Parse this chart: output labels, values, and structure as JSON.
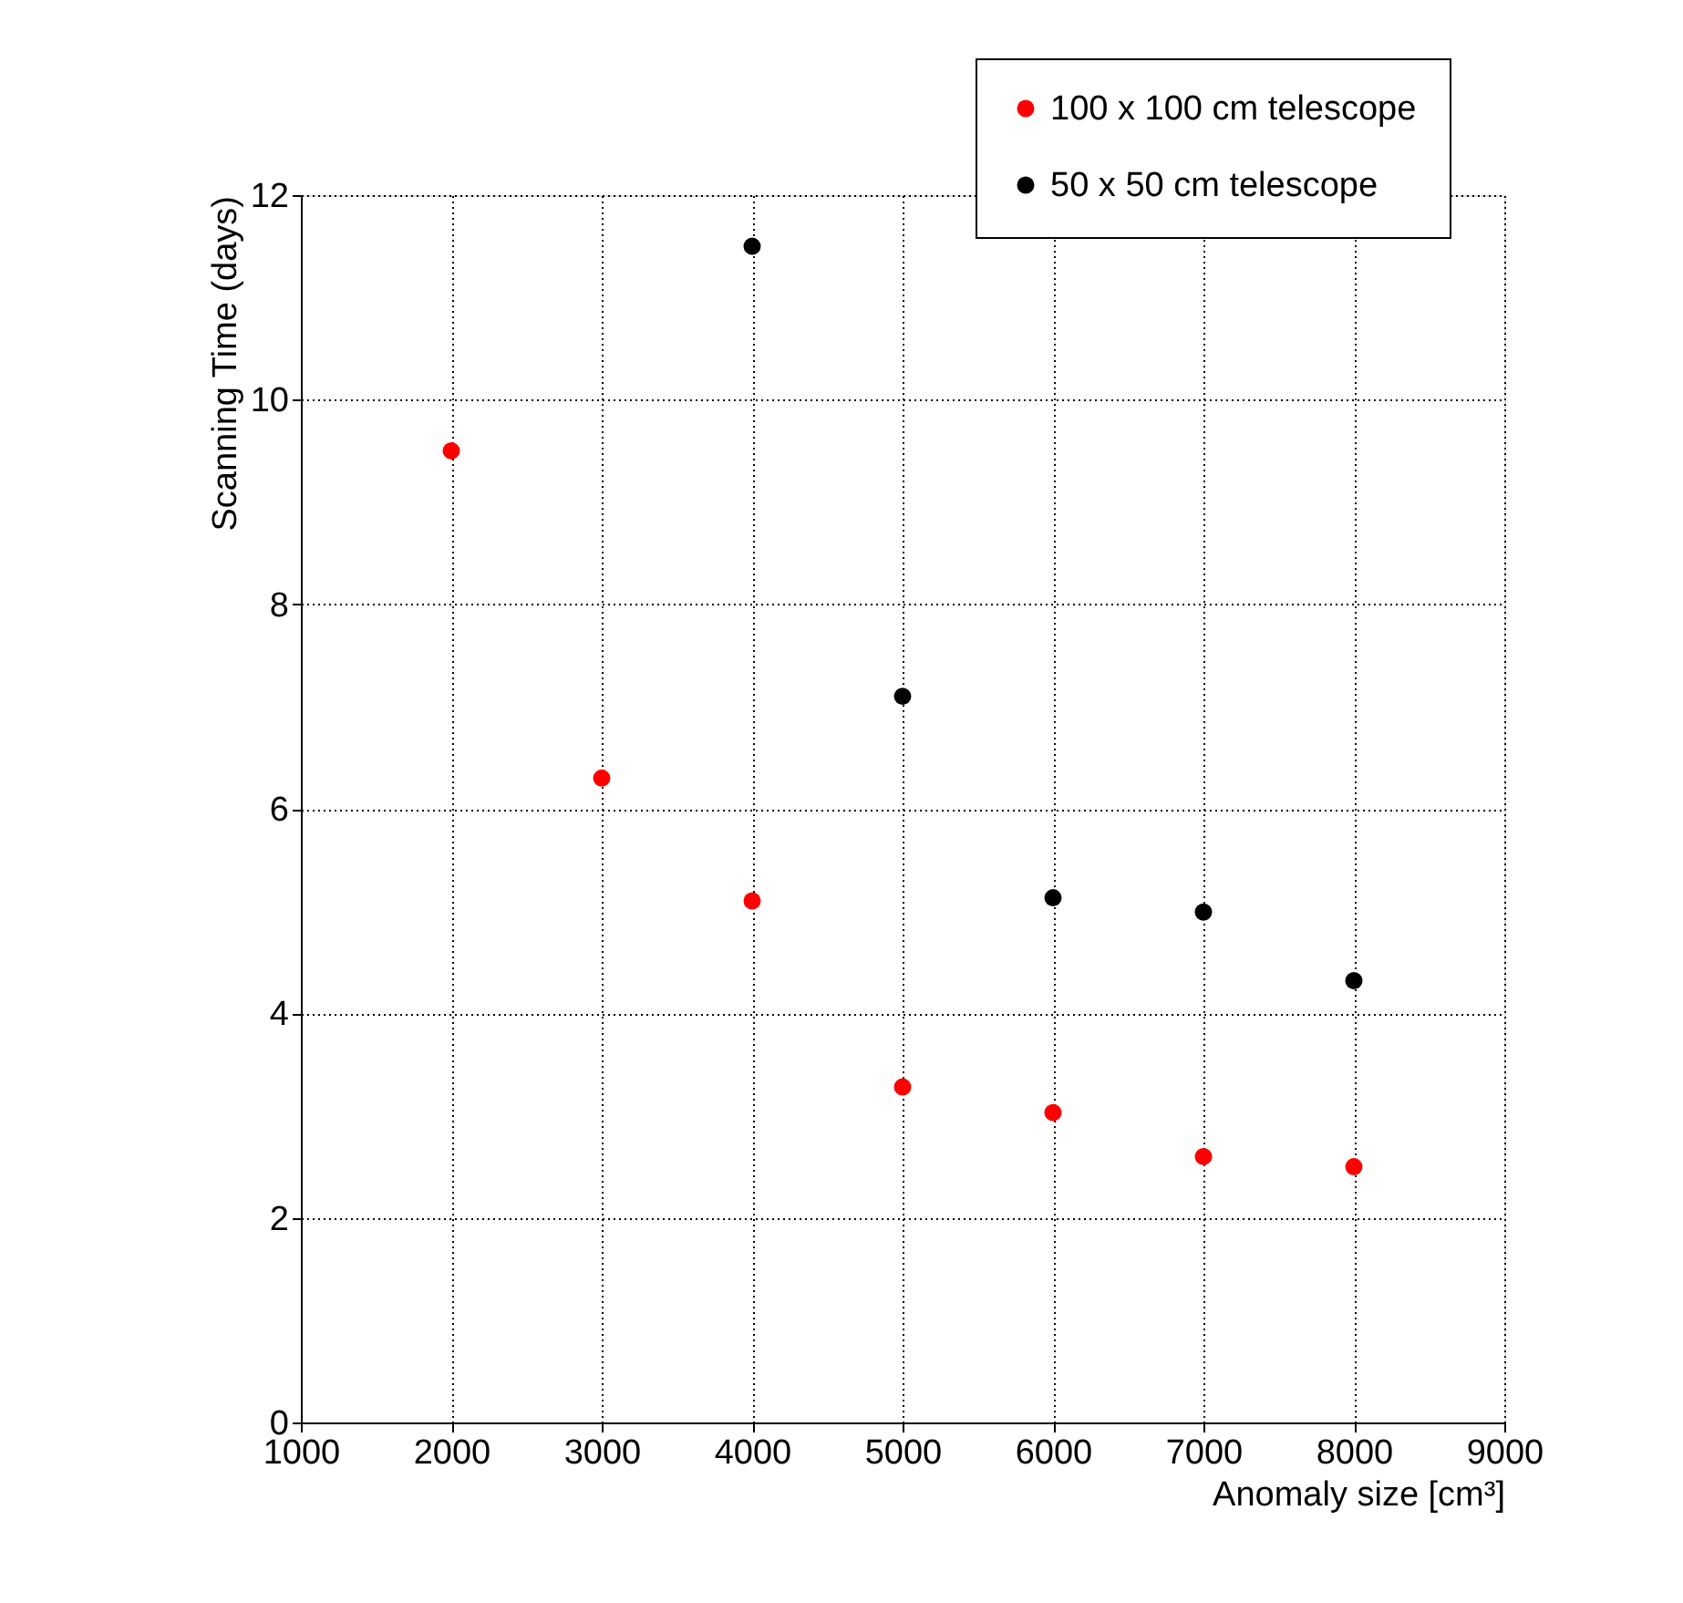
{
  "chart_data": {
    "type": "scatter",
    "xlabel": "Anomaly size [cm³]",
    "ylabel": "Scanning Time (days)",
    "xlim": [
      1000,
      9000
    ],
    "xticks": [
      1000,
      2000,
      3000,
      4000,
      5000,
      6000,
      7000,
      8000,
      9000
    ],
    "ylim": [
      0,
      12
    ],
    "yticks": [
      0,
      2,
      4,
      6,
      8,
      10,
      12
    ],
    "grid": true,
    "legend": "top right",
    "marker": "circle",
    "series": [
      {
        "name": "100 x 100 cm telescope",
        "color": "#ff0000",
        "x": [
          2000,
          3000,
          4000,
          5000,
          6000,
          7000,
          8000
        ],
        "values": [
          9.5,
          6.3,
          5.1,
          3.28,
          3.03,
          2.6,
          2.5
        ]
      },
      {
        "name": "50 x 50 cm telescope",
        "color": "#000000",
        "x": [
          4000,
          5000,
          6000,
          7000,
          8000
        ],
        "values": [
          11.5,
          7.1,
          5.13,
          4.99,
          4.32
        ]
      }
    ]
  }
}
